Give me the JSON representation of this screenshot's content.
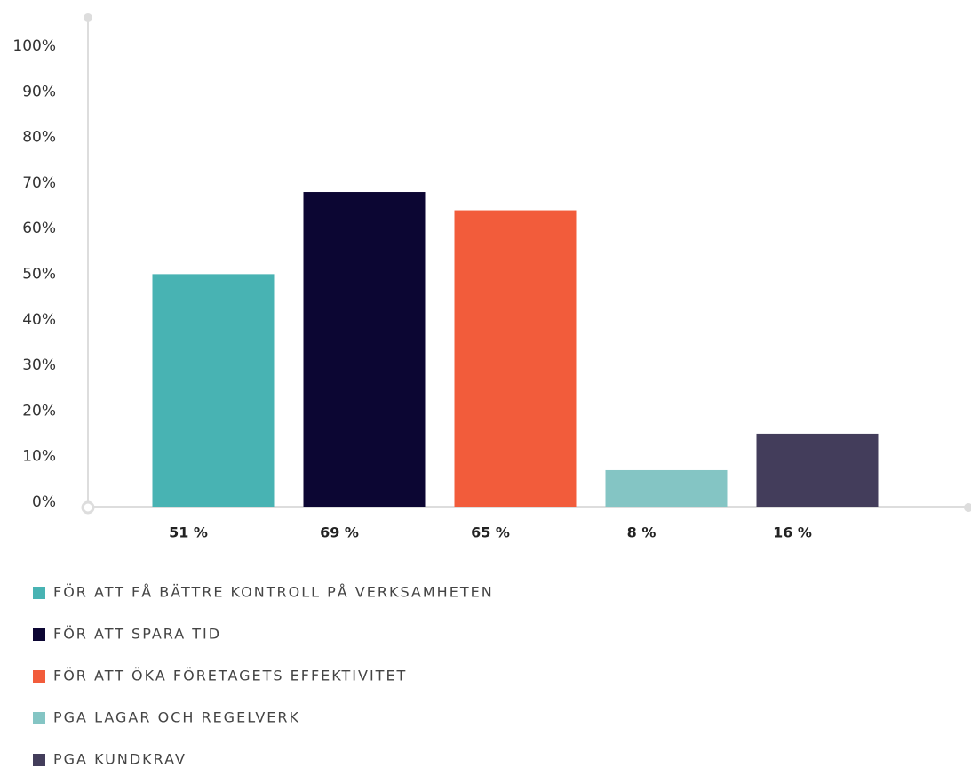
{
  "chart_data": {
    "type": "bar",
    "categories": [
      "FÖR ATT FÅ BÄTTRE KONTROLL PÅ VERKSAMHETEN",
      "FÖR ATT SPARA TID",
      "FÖR ATT ÖKA FÖRETAGETS EFFEKTIVITET",
      "PGA LAGAR OCH REGELVERK",
      "PGA KUNDKRAV"
    ],
    "values": [
      51,
      69,
      65,
      8,
      16
    ],
    "value_labels": [
      "51 %",
      "69 %",
      "65 %",
      "8 %",
      "16 %"
    ],
    "colors": [
      "#48b3b3",
      "#0c0633",
      "#f25c3b",
      "#84c5c4",
      "#433d5b"
    ],
    "ylim": [
      0,
      100
    ],
    "yticks": [
      {
        "value": 0,
        "label": "0%"
      },
      {
        "value": 10,
        "label": "10%"
      },
      {
        "value": 20,
        "label": "20%"
      },
      {
        "value": 30,
        "label": "30%"
      },
      {
        "value": 40,
        "label": "40%"
      },
      {
        "value": 50,
        "label": "50%"
      },
      {
        "value": 60,
        "label": "60%"
      },
      {
        "value": 70,
        "label": "70%"
      },
      {
        "value": 80,
        "label": "80%"
      },
      {
        "value": 90,
        "label": "90%"
      },
      {
        "value": 100,
        "label": "100%"
      }
    ],
    "grid": false
  }
}
